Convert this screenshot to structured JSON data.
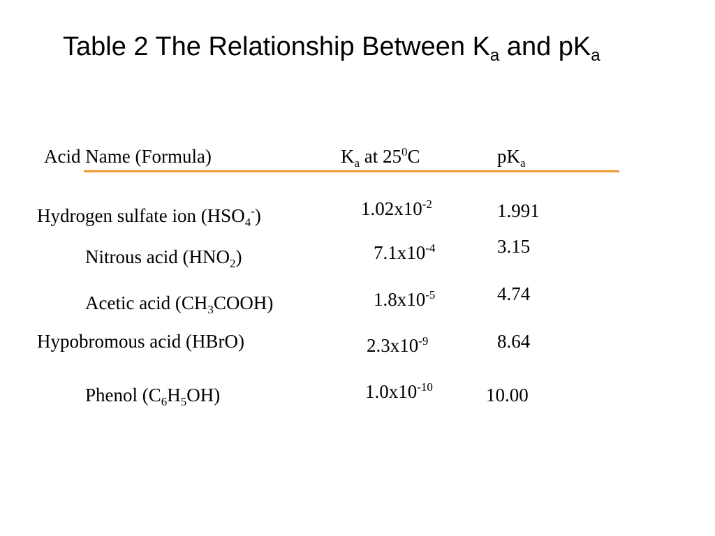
{
  "title": {
    "main": "Table 2 The Relationship Between K",
    "sub1": "a",
    "mid": " and pK",
    "sub2": "a"
  },
  "header": {
    "acid": "Acid Name (Formula)",
    "ka_k": "K",
    "ka_sub": "a",
    "ka_mid": " at 25",
    "ka_sup": "0",
    "ka_end": "C",
    "pka": "pK",
    "pka_sub": "a"
  },
  "colors": {
    "rule": "#F0962D"
  },
  "rows": [
    {
      "name": {
        "a": "Hydrogen sulfate ion (HSO",
        "sub": "4",
        "sup": "-",
        "end": ")"
      },
      "ka": {
        "base": "1.02x10",
        "exp": "-2"
      },
      "pka": "1.991"
    },
    {
      "name": {
        "a": "Nitrous acid (HNO",
        "sub": "2",
        "end": ")"
      },
      "ka": {
        "base": "7.1x10",
        "exp": "-4"
      },
      "pka": "3.15"
    },
    {
      "name": {
        "a": "Acetic acid (CH",
        "sub": "3",
        "end": "COOH)"
      },
      "ka": {
        "base": "1.8x10",
        "exp": "-5"
      },
      "pka": "4.74"
    },
    {
      "name": {
        "a": "Hypobromous acid (HBrO)"
      },
      "ka": {
        "base": "2.3x10",
        "exp": "-9"
      },
      "pka": "8.64"
    },
    {
      "name": {
        "a": "Phenol (C",
        "sub": "6",
        "mid": "H",
        "sub2": "5",
        "end": "OH)"
      },
      "ka": {
        "base": "1.0x10",
        "exp": "-10"
      },
      "pka": "10.00"
    }
  ]
}
